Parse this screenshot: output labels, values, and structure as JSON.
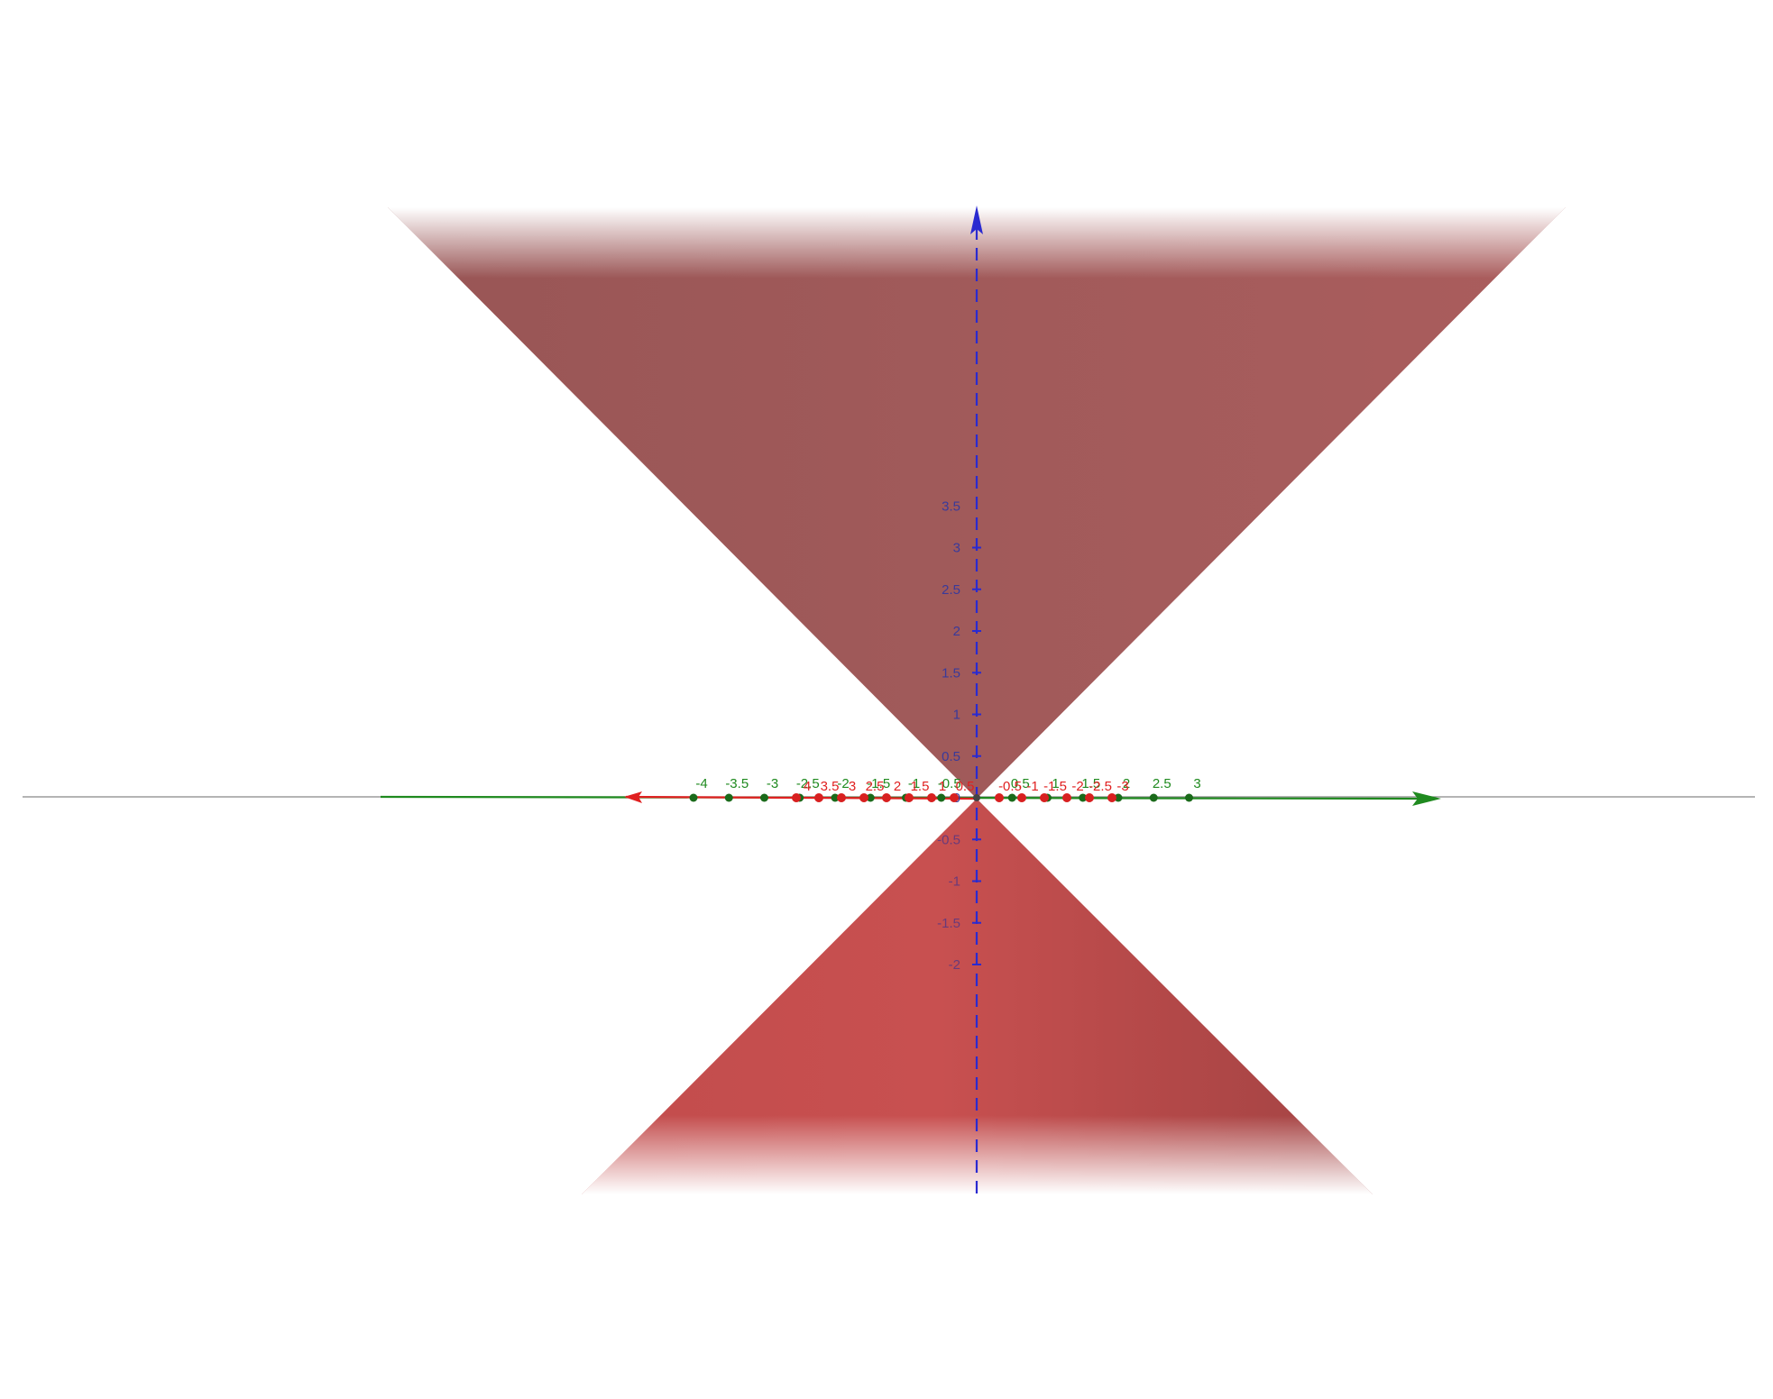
{
  "colors": {
    "background": "#ffffff",
    "cone_upper": "#9e5555",
    "cone_lower": "#c64d4d",
    "z_axis": "#2a2ad0",
    "y_axis": "#1f8a1f",
    "x_axis": "#e02020",
    "horizon": "#888888"
  },
  "scene": {
    "surface": "double cone",
    "z_axis_style": "dashed",
    "z_range": [
      -2.4,
      3.5
    ],
    "y_range": [
      -4.0,
      3.3
    ],
    "x_range": [
      -4.0,
      3.0
    ]
  },
  "z_axis": {
    "ticks": [
      {
        "value": 3.5,
        "label": "3.5"
      },
      {
        "value": 3,
        "label": "3"
      },
      {
        "value": 2.5,
        "label": "2.5"
      },
      {
        "value": 2,
        "label": "2"
      },
      {
        "value": 1.5,
        "label": "1.5"
      },
      {
        "value": 1,
        "label": "1"
      },
      {
        "value": 0.5,
        "label": "0.5"
      },
      {
        "value": 0,
        "label": "0"
      },
      {
        "value": -0.5,
        "label": "-0.5"
      },
      {
        "value": -1,
        "label": "-1"
      },
      {
        "value": -1.5,
        "label": "-1.5"
      },
      {
        "value": -2,
        "label": "-2"
      }
    ]
  },
  "y_axis": {
    "ticks": [
      {
        "value": -4,
        "label": "-4"
      },
      {
        "value": -3.5,
        "label": "-3.5"
      },
      {
        "value": -3,
        "label": "-3"
      },
      {
        "value": -2.5,
        "label": "-2.5"
      },
      {
        "value": -2,
        "label": "-2"
      },
      {
        "value": -1.5,
        "label": "-1.5"
      },
      {
        "value": -1,
        "label": "-1"
      },
      {
        "value": -0.5,
        "label": "-0.5"
      },
      {
        "value": 0.5,
        "label": "0.5"
      },
      {
        "value": 1,
        "label": "1"
      },
      {
        "value": 1.5,
        "label": "1.5"
      },
      {
        "value": 2,
        "label": "2"
      },
      {
        "value": 2.5,
        "label": "2.5"
      },
      {
        "value": 3,
        "label": "3"
      }
    ]
  },
  "x_axis": {
    "ticks": [
      {
        "value": 4,
        "label": "4"
      },
      {
        "value": 3.5,
        "label": "3.5"
      },
      {
        "value": 3,
        "label": "3"
      },
      {
        "value": 2.5,
        "label": "2.5"
      },
      {
        "value": 2,
        "label": "2"
      },
      {
        "value": 1.5,
        "label": "1.5"
      },
      {
        "value": 1,
        "label": "1"
      },
      {
        "value": 0.5,
        "label": "0.5"
      },
      {
        "value": -0.5,
        "label": "-0.5"
      },
      {
        "value": -1,
        "label": "-1"
      },
      {
        "value": -1.5,
        "label": "-1.5"
      },
      {
        "value": -2,
        "label": "-2"
      },
      {
        "value": -2.5,
        "label": "-2.5"
      },
      {
        "value": -3,
        "label": "-3"
      }
    ]
  }
}
